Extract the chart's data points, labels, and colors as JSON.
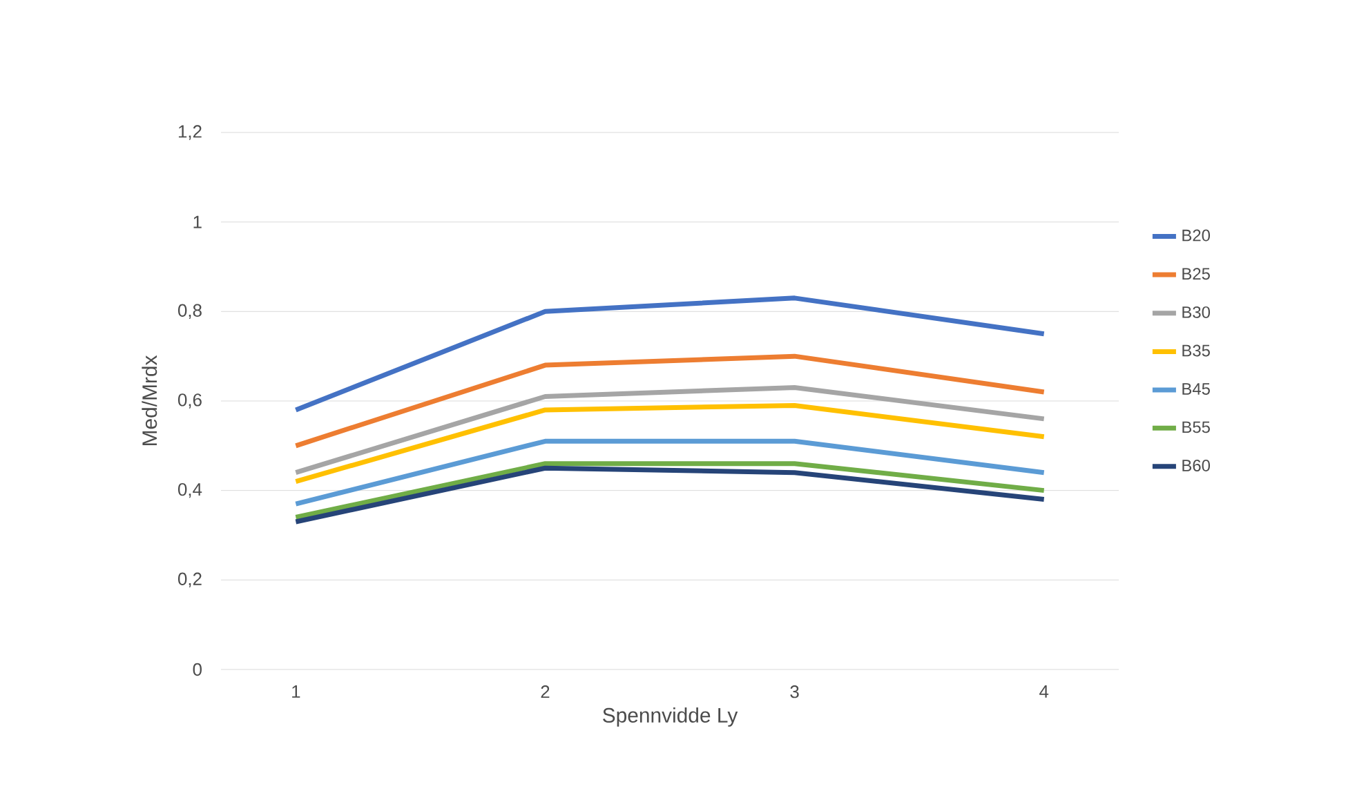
{
  "chart_data": {
    "type": "line",
    "xlabel": "Spennvidde Ly",
    "ylabel": "Med/Mrdx",
    "categories": [
      "1",
      "2",
      "3",
      "4"
    ],
    "series": [
      {
        "name": "B20",
        "color": "#4472c4",
        "values": [
          0.58,
          0.8,
          0.83,
          0.75
        ]
      },
      {
        "name": "B25",
        "color": "#ed7d31",
        "values": [
          0.5,
          0.68,
          0.7,
          0.62
        ]
      },
      {
        "name": "B30",
        "color": "#a5a5a5",
        "values": [
          0.44,
          0.61,
          0.63,
          0.56
        ]
      },
      {
        "name": "B35",
        "color": "#ffc000",
        "values": [
          0.42,
          0.58,
          0.59,
          0.52
        ]
      },
      {
        "name": "B45",
        "color": "#5b9bd5",
        "values": [
          0.37,
          0.51,
          0.51,
          0.44
        ]
      },
      {
        "name": "B55",
        "color": "#70ad47",
        "values": [
          0.34,
          0.46,
          0.46,
          0.4
        ]
      },
      {
        "name": "B60",
        "color": "#264478",
        "values": [
          0.33,
          0.45,
          0.44,
          0.38
        ]
      }
    ],
    "ylim": [
      0,
      1.2
    ],
    "yticks": [
      {
        "value": 0,
        "label": "0"
      },
      {
        "value": 0.2,
        "label": "0,2"
      },
      {
        "value": 0.4,
        "label": "0,4"
      },
      {
        "value": 0.6,
        "label": "0,6"
      },
      {
        "value": 0.8,
        "label": "0,8"
      },
      {
        "value": 1,
        "label": "1"
      },
      {
        "value": 1.2,
        "label": "1,2"
      }
    ],
    "grid": "y",
    "legend": "right",
    "marker": "none",
    "line_style": "solid"
  }
}
